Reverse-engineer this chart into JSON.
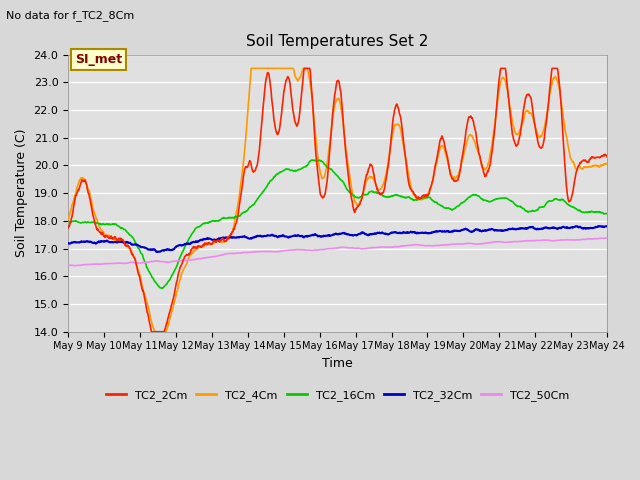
{
  "title": "Soil Temperatures Set 2",
  "subtitle": "No data for f_TC2_8Cm",
  "xlabel": "Time",
  "ylabel": "Soil Temperature (C)",
  "ylim": [
    14.0,
    24.0
  ],
  "yticks": [
    14.0,
    15.0,
    16.0,
    17.0,
    18.0,
    19.0,
    20.0,
    21.0,
    22.0,
    23.0,
    24.0
  ],
  "xtick_labels": [
    "May 9",
    "May 10",
    "May 11",
    "May 12",
    "May 13",
    "May 14",
    "May 15",
    "May 16",
    "May 17",
    "May 18",
    "May 19",
    "May 20",
    "May 21",
    "May 22",
    "May 23",
    "May 24"
  ],
  "fig_bg": "#d8d8d8",
  "plot_bg": "#e0e0e0",
  "grid_color": "#ffffff",
  "series_colors": {
    "TC2_2Cm": "#ff2200",
    "TC2_4Cm": "#ff9900",
    "TC2_16Cm": "#00cc00",
    "TC2_32Cm": "#0000cc",
    "TC2_50Cm": "#ee88ee"
  },
  "annotation_box": {
    "text": "SI_met",
    "fc": "#ffffcc",
    "ec": "#aa8800"
  },
  "legend_labels": [
    "TC2_2Cm",
    "TC2_4Cm",
    "TC2_16Cm",
    "TC2_32Cm",
    "TC2_50Cm"
  ],
  "legend_colors": [
    "#ff2200",
    "#ff9900",
    "#00cc00",
    "#0000cc",
    "#ee88ee"
  ]
}
